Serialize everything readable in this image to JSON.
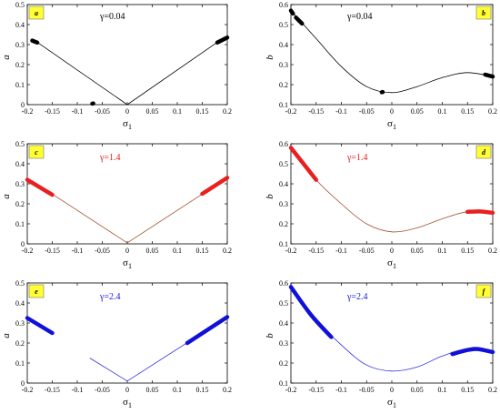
{
  "chart_data": [
    {
      "id": "a",
      "type": "line",
      "panel_tag": "a",
      "gamma_label": "γ=0.04",
      "gamma_color": "#000000",
      "line_color": "#000000",
      "thick_color": "#000000",
      "ylabel": "a",
      "xlabel": "σ1",
      "xlim": [
        -0.2,
        0.2
      ],
      "ylim": [
        0,
        0.5
      ],
      "xticks": [
        -0.2,
        -0.15,
        -0.1,
        -0.05,
        0,
        0.05,
        0.1,
        0.15,
        0.2
      ],
      "xtick_labels": [
        "-0.2",
        "-0.15",
        "-0.1",
        "-0.05",
        "0",
        "0.05",
        "0.1",
        "0.15",
        "0.2"
      ],
      "yticks": [
        0,
        0.1,
        0.2,
        0.3,
        0.4,
        0.5
      ],
      "ytick_labels": [
        "0",
        "0.1",
        "0.2",
        "0.3",
        "0.4",
        "0.5"
      ],
      "thin_series": [
        {
          "x": [
            -0.185,
            0.0,
            0.185
          ],
          "y": [
            0.32,
            0.0,
            0.32
          ]
        }
      ],
      "thick_series": [
        {
          "x": [
            -0.19,
            -0.18
          ],
          "y": [
            0.32,
            0.31
          ]
        },
        {
          "x": [
            0.18,
            0.2
          ],
          "y": [
            0.31,
            0.335
          ]
        },
        {
          "x": [
            -0.07,
            -0.068
          ],
          "y": [
            0.005,
            0.006
          ]
        }
      ]
    },
    {
      "id": "b",
      "type": "line",
      "panel_tag": "b",
      "gamma_label": "γ=0.04",
      "gamma_color": "#000000",
      "line_color": "#000000",
      "thick_color": "#000000",
      "ylabel": "b",
      "xlabel": "σ1",
      "xlim": [
        -0.2,
        0.2
      ],
      "ylim": [
        0.1,
        0.6
      ],
      "xticks": [
        -0.2,
        -0.15,
        -0.1,
        -0.05,
        0,
        0.05,
        0.1,
        0.15,
        0.2
      ],
      "xtick_labels": [
        "-0.2",
        "-0.15",
        "-0.1",
        "-0.05",
        "0",
        "0.05",
        "0.1",
        "0.15",
        "0.2"
      ],
      "yticks": [
        0.1,
        0.2,
        0.3,
        0.4,
        0.5,
        0.6
      ],
      "ytick_labels": [
        "0.1",
        "0.2",
        "0.3",
        "0.4",
        "0.5",
        "0.6"
      ],
      "thin_series": [
        {
          "x": [
            -0.2,
            -0.15,
            -0.1,
            -0.05,
            0,
            0.05,
            0.1,
            0.15,
            0.2
          ],
          "y": [
            0.57,
            0.43,
            0.29,
            0.19,
            0.16,
            0.19,
            0.235,
            0.26,
            0.24
          ]
        }
      ],
      "thick_series": [
        {
          "x": [
            -0.2,
            -0.196
          ],
          "y": [
            0.57,
            0.555
          ]
        },
        {
          "x": [
            -0.19,
            -0.178
          ],
          "y": [
            0.535,
            0.505
          ]
        },
        {
          "x": [
            -0.02,
            -0.018
          ],
          "y": [
            0.162,
            0.163
          ]
        },
        {
          "x": [
            0.185,
            0.2
          ],
          "y": [
            0.25,
            0.24
          ]
        }
      ]
    },
    {
      "id": "c",
      "type": "line",
      "panel_tag": "c",
      "gamma_label": "γ=1.4",
      "gamma_color": "#e02020",
      "line_color": "#a0522d",
      "thick_color": "#e82020",
      "ylabel": "a",
      "xlabel": "σ1",
      "xlim": [
        -0.2,
        0.2
      ],
      "ylim": [
        0,
        0.5
      ],
      "xticks": [
        -0.2,
        -0.15,
        -0.1,
        -0.05,
        0,
        0.05,
        0.1,
        0.15,
        0.2
      ],
      "xtick_labels": [
        "-0.2",
        "-0.15",
        "-0.1",
        "-0.05",
        "0",
        "0.05",
        "0.1",
        "0.15",
        "0.2"
      ],
      "yticks": [
        0,
        0.1,
        0.2,
        0.3,
        0.4,
        0.5
      ],
      "ytick_labels": [
        "0",
        "0.1",
        "0.2",
        "0.3",
        "0.4",
        "0.5"
      ],
      "thin_series": [
        {
          "x": [
            -0.2,
            0.0,
            0.2
          ],
          "y": [
            0.33,
            0.005,
            0.33
          ]
        }
      ],
      "thick_series": [
        {
          "x": [
            -0.2,
            -0.15
          ],
          "y": [
            0.32,
            0.245
          ]
        },
        {
          "x": [
            0.15,
            0.2
          ],
          "y": [
            0.25,
            0.33
          ]
        }
      ]
    },
    {
      "id": "d",
      "type": "line",
      "panel_tag": "d",
      "gamma_label": "γ=1.4",
      "gamma_color": "#e02020",
      "line_color": "#a0522d",
      "thick_color": "#e82020",
      "ylabel": "b",
      "xlabel": "σ1",
      "xlim": [
        -0.2,
        0.2
      ],
      "ylim": [
        0.1,
        0.6
      ],
      "xticks": [
        -0.2,
        -0.15,
        -0.1,
        -0.05,
        0,
        0.05,
        0.1,
        0.15,
        0.2
      ],
      "xtick_labels": [
        "-0.2",
        "-0.15",
        "-0.1",
        "-0.05",
        "0",
        "0.05",
        "0.1",
        "0.15",
        "0.2"
      ],
      "yticks": [
        0.1,
        0.2,
        0.3,
        0.4,
        0.5,
        0.6
      ],
      "ytick_labels": [
        "0.1",
        "0.2",
        "0.3",
        "0.4",
        "0.5",
        "0.6"
      ],
      "thin_series": [
        {
          "x": [
            -0.2,
            -0.15,
            -0.1,
            -0.05,
            0,
            0.05,
            0.1,
            0.15,
            0.2
          ],
          "y": [
            0.58,
            0.42,
            0.3,
            0.2,
            0.16,
            0.18,
            0.225,
            0.26,
            0.25
          ]
        }
      ],
      "thick_series": [
        {
          "x": [
            -0.2,
            -0.175,
            -0.15
          ],
          "y": [
            0.58,
            0.5,
            0.42
          ]
        },
        {
          "x": [
            0.15,
            0.175,
            0.2
          ],
          "y": [
            0.26,
            0.262,
            0.255
          ]
        }
      ]
    },
    {
      "id": "e",
      "type": "line",
      "panel_tag": "e",
      "gamma_label": "γ=2.4",
      "gamma_color": "#1a1ad8",
      "line_color": "#2e2ee0",
      "thick_color": "#1010d8",
      "ylabel": "a",
      "xlabel": "σ1",
      "xlim": [
        -0.2,
        0.2
      ],
      "ylim": [
        0,
        0.5
      ],
      "xticks": [
        -0.2,
        -0.15,
        -0.1,
        -0.05,
        0,
        0.05,
        0.1,
        0.15,
        0.2
      ],
      "xtick_labels": [
        "-0.2",
        "-0.15",
        "-0.1",
        "-0.05",
        "0",
        "0.05",
        "0.1",
        "0.15",
        "0.2"
      ],
      "yticks": [
        0,
        0.1,
        0.2,
        0.3,
        0.4,
        0.5
      ],
      "ytick_labels": [
        "0",
        "0.1",
        "0.2",
        "0.3",
        "0.4",
        "0.5"
      ],
      "thin_series": [
        {
          "x": [
            -0.075,
            0.0,
            0.2
          ],
          "y": [
            0.125,
            0.01,
            0.33
          ]
        }
      ],
      "thick_series": [
        {
          "x": [
            -0.2,
            -0.15
          ],
          "y": [
            0.325,
            0.25
          ]
        },
        {
          "x": [
            0.12,
            0.2
          ],
          "y": [
            0.2,
            0.33
          ]
        }
      ]
    },
    {
      "id": "f",
      "type": "line",
      "panel_tag": "f",
      "gamma_label": "γ=2.4",
      "gamma_color": "#1a1ad8",
      "line_color": "#2e2ee0",
      "thick_color": "#1010d8",
      "ylabel": "b",
      "xlabel": "σ1",
      "xlim": [
        -0.2,
        0.2
      ],
      "ylim": [
        0.1,
        0.6
      ],
      "xticks": [
        -0.2,
        -0.15,
        -0.1,
        -0.05,
        0,
        0.05,
        0.1,
        0.15,
        0.2
      ],
      "xtick_labels": [
        "-0.2",
        "-0.15",
        "-0.1",
        "-0.05",
        "0",
        "0.05",
        "0.1",
        "0.15",
        "0.2"
      ],
      "yticks": [
        0.1,
        0.2,
        0.3,
        0.4,
        0.5,
        0.6
      ],
      "ytick_labels": [
        "0.1",
        "0.2",
        "0.3",
        "0.4",
        "0.5",
        "0.6"
      ],
      "thin_series": [
        {
          "x": [
            -0.2,
            -0.15,
            -0.1,
            -0.05,
            0,
            0.05,
            0.1,
            0.15,
            0.2
          ],
          "y": [
            0.58,
            0.42,
            0.29,
            0.19,
            0.16,
            0.18,
            0.235,
            0.27,
            0.255
          ]
        }
      ],
      "thick_series": [
        {
          "x": [
            -0.2,
            -0.16,
            -0.12
          ],
          "y": [
            0.58,
            0.44,
            0.33
          ]
        },
        {
          "x": [
            0.12,
            0.15,
            0.17,
            0.2
          ],
          "y": [
            0.245,
            0.265,
            0.27,
            0.255
          ]
        }
      ]
    }
  ]
}
